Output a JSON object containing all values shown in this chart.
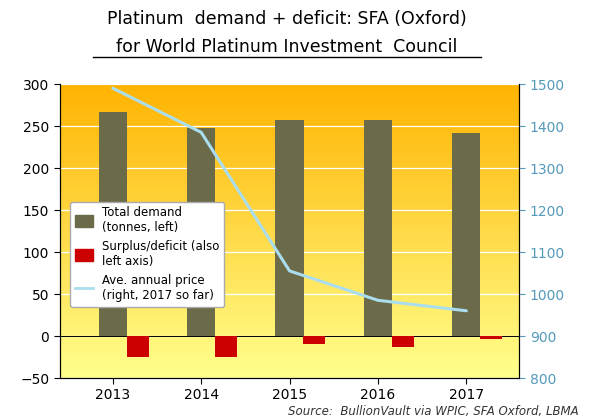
{
  "title_line1": "Platinum  demand + deficit: SFA (Oxford)",
  "title_line2": "for World Platinum Investment  Council",
  "years": [
    2013,
    2014,
    2015,
    2016,
    2017
  ],
  "total_demand": [
    267,
    248,
    257,
    257,
    242
  ],
  "surplus_deficit": [
    -25,
    -25,
    -10,
    -13,
    -3
  ],
  "avg_price": [
    1490,
    1385,
    1055,
    985,
    960
  ],
  "bar_color": "#6b6b4a",
  "deficit_color": "#cc0000",
  "price_color": "#aaddee",
  "ylim_left": [
    -50,
    300
  ],
  "ylim_right": [
    800,
    1500
  ],
  "source_text": "Source:  BullionVault via WPIC, SFA Oxford, LBMA",
  "legend_demand": "Total demand\n(tonnes, left)",
  "legend_deficit": "Surplus/deficit (also\nleft axis)",
  "legend_price": "Ave. annual price\n(right, 2017 so far)",
  "bar_width": 0.32,
  "title_fontsize": 12.5,
  "source_fontsize": 8.5,
  "yticks_left": [
    -50,
    0,
    50,
    100,
    150,
    200,
    250,
    300
  ],
  "yticks_right": [
    800,
    900,
    1000,
    1100,
    1200,
    1300,
    1400,
    1500
  ]
}
